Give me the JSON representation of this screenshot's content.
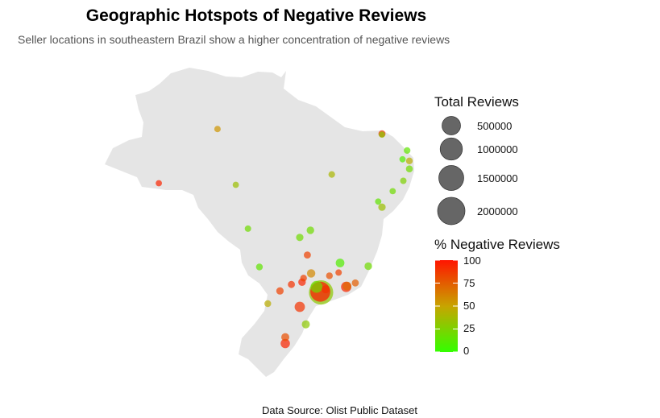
{
  "chart_data": {
    "type": "scatter",
    "title": "Geographic Hotspots of Negative Reviews",
    "subtitle": "Seller locations in southeastern Brazil show a higher concentration of negative reviews",
    "caption": "Data Source: Olist Public Dataset",
    "basemap": "Brazil",
    "size_legend": {
      "title": "Total Reviews",
      "breaks": [
        500000,
        1000000,
        1500000,
        2000000
      ]
    },
    "color_legend": {
      "title": "% Negative Reviews",
      "breaks": [
        0,
        25,
        50,
        75,
        100
      ],
      "low_color": "#33ff00",
      "mid_color": "#c8a400",
      "high_color": "#ff1500"
    },
    "points": [
      {
        "lon": -45.1,
        "lat": -8.8,
        "neg": 40,
        "size": 12000
      },
      {
        "lon": -57.7,
        "lat": -10.1,
        "neg": 35,
        "size": 9000
      },
      {
        "lon": -67.8,
        "lat": -9.9,
        "neg": 95,
        "size": 8000
      },
      {
        "lon": -60.1,
        "lat": -3.1,
        "neg": 55,
        "size": 10000
      },
      {
        "lon": -38.5,
        "lat": -3.7,
        "neg": 90,
        "size": 20000
      },
      {
        "lon": -38.5,
        "lat": -3.8,
        "neg": 30,
        "size": 9000
      },
      {
        "lon": -35.2,
        "lat": -5.8,
        "neg": 15,
        "size": 12000
      },
      {
        "lon": -35.8,
        "lat": -6.9,
        "neg": 10,
        "size": 8000
      },
      {
        "lon": -34.9,
        "lat": -7.1,
        "neg": 45,
        "size": 14000
      },
      {
        "lon": -34.9,
        "lat": -8.1,
        "neg": 20,
        "size": 18000
      },
      {
        "lon": -35.7,
        "lat": -9.6,
        "neg": 25,
        "size": 10000
      },
      {
        "lon": -37.1,
        "lat": -10.9,
        "neg": 20,
        "size": 9000
      },
      {
        "lon": -38.5,
        "lat": -12.9,
        "neg": 35,
        "size": 25000
      },
      {
        "lon": -39.0,
        "lat": -12.2,
        "neg": 15,
        "size": 8000
      },
      {
        "lon": -40.3,
        "lat": -20.3,
        "neg": 20,
        "size": 30000
      },
      {
        "lon": -43.2,
        "lat": -22.9,
        "neg": 95,
        "size": 120000
      },
      {
        "lon": -43.1,
        "lat": -22.8,
        "neg": 70,
        "size": 60000
      },
      {
        "lon": -44.0,
        "lat": -19.9,
        "neg": 10,
        "size": 60000
      },
      {
        "lon": -47.9,
        "lat": -15.8,
        "neg": 20,
        "size": 30000
      },
      {
        "lon": -49.3,
        "lat": -16.7,
        "neg": 20,
        "size": 25000
      },
      {
        "lon": -46.6,
        "lat": -23.5,
        "neg": 100,
        "size": 900000
      },
      {
        "lon": -46.5,
        "lat": -23.6,
        "neg": 30,
        "size": 1500000
      },
      {
        "lon": -47.1,
        "lat": -22.9,
        "neg": 20,
        "size": 200000
      },
      {
        "lon": -47.8,
        "lat": -21.2,
        "neg": 60,
        "size": 50000
      },
      {
        "lon": -49.3,
        "lat": -25.4,
        "neg": 90,
        "size": 120000
      },
      {
        "lon": -48.5,
        "lat": -27.6,
        "neg": 30,
        "size": 40000
      },
      {
        "lon": -51.2,
        "lat": -30.0,
        "neg": 95,
        "size": 80000
      },
      {
        "lon": -51.2,
        "lat": -29.2,
        "neg": 80,
        "size": 40000
      },
      {
        "lon": -54.6,
        "lat": -20.4,
        "neg": 15,
        "size": 15000
      },
      {
        "lon": -56.1,
        "lat": -15.6,
        "neg": 20,
        "size": 10000
      },
      {
        "lon": -53.5,
        "lat": -25.0,
        "neg": 45,
        "size": 15000
      },
      {
        "lon": -51.9,
        "lat": -23.4,
        "neg": 85,
        "size": 25000
      },
      {
        "lon": -50.4,
        "lat": -22.6,
        "neg": 90,
        "size": 20000
      },
      {
        "lon": -49.0,
        "lat": -22.3,
        "neg": 95,
        "size": 30000
      },
      {
        "lon": -48.8,
        "lat": -21.8,
        "neg": 85,
        "size": 15000
      },
      {
        "lon": -45.9,
        "lat": -23.2,
        "neg": 90,
        "size": 40000
      },
      {
        "lon": -45.4,
        "lat": -21.5,
        "neg": 80,
        "size": 15000
      },
      {
        "lon": -44.2,
        "lat": -21.1,
        "neg": 85,
        "size": 10000
      },
      {
        "lon": -42.0,
        "lat": -22.4,
        "neg": 75,
        "size": 20000
      },
      {
        "lon": -48.3,
        "lat": -18.9,
        "neg": 85,
        "size": 20000
      }
    ]
  }
}
